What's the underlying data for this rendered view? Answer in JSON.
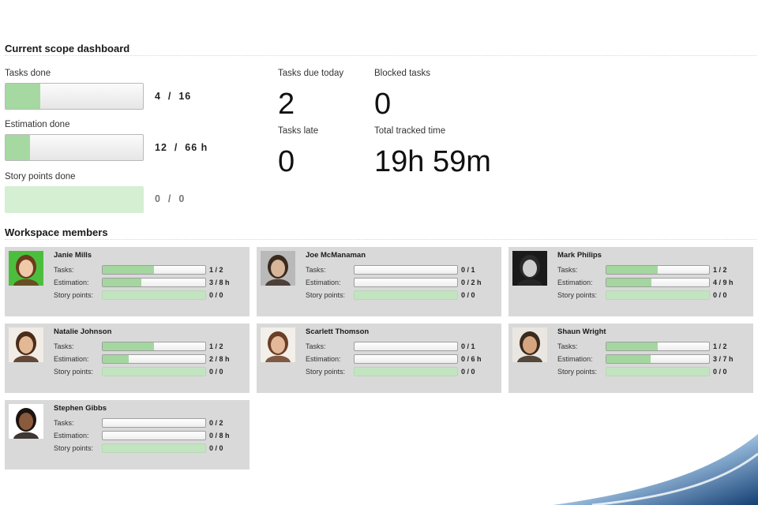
{
  "scope": {
    "title": "Current scope dashboard",
    "tasks_done": {
      "label": "Tasks done",
      "value_text": "4  /  16",
      "progress": 0.25
    },
    "estimation_done": {
      "label": "Estimation done",
      "value_text": "12  /  66 h",
      "progress": 0.18
    },
    "story_points_done": {
      "label": "Story points done",
      "value_text": "0  /  0",
      "progress": 0
    },
    "tasks_due_today": {
      "label": "Tasks due today",
      "value": "2"
    },
    "blocked_tasks": {
      "label": "Blocked tasks",
      "value": "0"
    },
    "tasks_late": {
      "label": "Tasks late",
      "value": "0"
    },
    "total_tracked_time": {
      "label": "Total tracked time",
      "value": "19h 59m"
    }
  },
  "members": {
    "title": "Workspace members",
    "row_labels": {
      "tasks": "Tasks:",
      "estimation": "Estimation:",
      "story_points": "Story points:"
    },
    "list": [
      {
        "name": "Janie Mills",
        "tasks": "1 / 2",
        "tasks_progress": 0.5,
        "estimation": "3 / 8 h",
        "estimation_progress": 0.375,
        "story_points": "0 / 0",
        "avatar": "portrait-woman-green-bg"
      },
      {
        "name": "Joe McManaman",
        "tasks": "0 / 1",
        "tasks_progress": 0,
        "estimation": "0 / 2 h",
        "estimation_progress": 0,
        "story_points": "0 / 0",
        "avatar": "portrait-man-grey-bg"
      },
      {
        "name": "Mark Philips",
        "tasks": "1 / 2",
        "tasks_progress": 0.5,
        "estimation": "4 / 9 h",
        "estimation_progress": 0.44,
        "story_points": "0 / 0",
        "avatar": "portrait-man-bw"
      },
      {
        "name": "Natalie Johnson",
        "tasks": "1 / 2",
        "tasks_progress": 0.5,
        "estimation": "2 / 8 h",
        "estimation_progress": 0.25,
        "story_points": "0 / 0",
        "avatar": "portrait-woman-brown-hair"
      },
      {
        "name": "Scarlett Thomson",
        "tasks": "0 / 1",
        "tasks_progress": 0,
        "estimation": "0 / 6 h",
        "estimation_progress": 0,
        "story_points": "0 / 0",
        "avatar": "portrait-woman-long-hair"
      },
      {
        "name": "Shaun Wright",
        "tasks": "1 / 2",
        "tasks_progress": 0.5,
        "estimation": "3 / 7 h",
        "estimation_progress": 0.43,
        "story_points": "0 / 0",
        "avatar": "portrait-man-beard"
      },
      {
        "name": "Stephen Gibbs",
        "tasks": "0 / 2",
        "tasks_progress": 0,
        "estimation": "0 / 8 h",
        "estimation_progress": 0,
        "story_points": "0 / 0",
        "avatar": "portrait-man-smiling"
      }
    ]
  },
  "colors": {
    "progress_fill": "#a5d9a1",
    "card_bg": "#d9d9d9",
    "swoosh": "#1b4f86"
  }
}
